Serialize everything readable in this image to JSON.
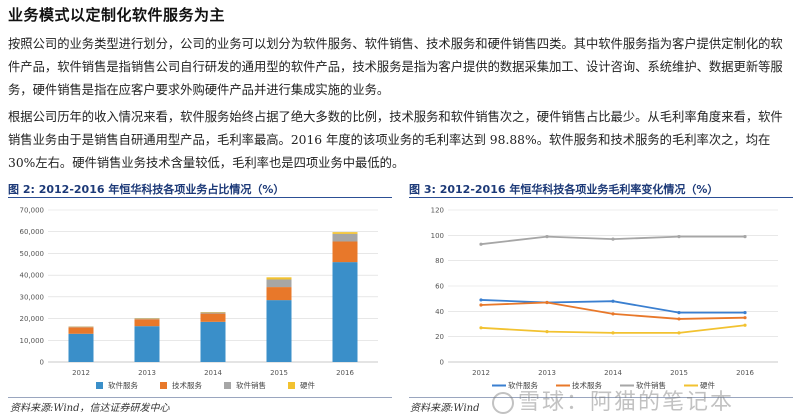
{
  "heading": "业务模式以定制化软件服务为主",
  "paragraphs": [
    "按照公司的业务类型进行划分，公司的业务可以划分为软件服务、软件销售、技术服务和硬件销售四类。其中软件服务指为客户提供定制化的软件产品，软件销售是指销售公司自行研发的通用型的软件产品，技术服务是指为客户提供的数据采集加工、设计咨询、系统维护、数据更新等服务，硬件销售是指在应客户要求外购硬件产品并进行集成实施的业务。",
    "根据公司历年的收入情况来看，软件服务始终占据了绝大多数的比例，技术服务和软件销售次之，硬件销售占比最少。从毛利率角度来看，软件销售业务由于是销售自研通用型产品，毛利率最高。2016 年度的该项业务的毛利率达到 98.88%。软件服务和技术服务的毛利率次之，均在 30%左右。硬件销售业务技术含量较低，毛利率也是四项业务中最低的。"
  ],
  "figures": [
    {
      "title": "图 2:  2012-2016 年恒华科技各项业务占比情况（%）",
      "source": "资料来源:Wind，信达证券研发中心"
    },
    {
      "title": "图 3:  2012-2016 年恒华科技各项业务毛利率变化情况（%）",
      "source": "资料来源:Wind"
    }
  ],
  "watermark": "雪球：阿猫的笔记本",
  "chart_data": [
    {
      "type": "bar",
      "stacked": true,
      "categories": [
        "2012",
        "2013",
        "2014",
        "2015",
        "2016"
      ],
      "series": [
        {
          "name": "软件服务",
          "color": "#3a8fc9",
          "values": [
            13000,
            16500,
            18500,
            28500,
            46000
          ]
        },
        {
          "name": "技术服务",
          "color": "#e8782a",
          "values": [
            3000,
            3200,
            3800,
            6000,
            9500
          ]
        },
        {
          "name": "软件销售",
          "color": "#a6a6a6",
          "values": [
            300,
            400,
            500,
            3500,
            3500
          ]
        },
        {
          "name": "硬件",
          "color": "#f2c230",
          "values": [
            100,
            150,
            200,
            1000,
            800
          ]
        }
      ],
      "ylim": [
        0,
        70000
      ],
      "yticks": [
        "0",
        "10,000",
        "20,000",
        "30,000",
        "40,000",
        "50,000",
        "60,000",
        "70,000"
      ],
      "grid": true,
      "legend": "bottom"
    },
    {
      "type": "line",
      "categories": [
        "2012",
        "2013",
        "2014",
        "2015",
        "2016"
      ],
      "series": [
        {
          "name": "软件服务",
          "color": "#3a7fd0",
          "values": [
            49,
            47,
            48,
            39,
            39
          ]
        },
        {
          "name": "技术服务",
          "color": "#e8782a",
          "values": [
            45,
            47,
            38,
            34,
            35
          ]
        },
        {
          "name": "软件销售",
          "color": "#a6a6a6",
          "values": [
            93,
            99,
            97,
            99,
            99
          ]
        },
        {
          "name": "硬件",
          "color": "#f2c230",
          "values": [
            27,
            24,
            23,
            23,
            29
          ]
        }
      ],
      "ylim": [
        0,
        120
      ],
      "yticks": [
        "0",
        "20",
        "40",
        "60",
        "80",
        "100",
        "120"
      ],
      "grid": true,
      "legend": "bottom"
    }
  ]
}
